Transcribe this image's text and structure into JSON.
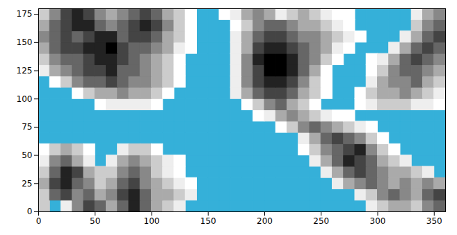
{
  "chart_data": {
    "type": "heatmap",
    "color": "#35b0d9",
    "xlim": [
      0,
      360
    ],
    "ylim": [
      0,
      180
    ],
    "xticks": [
      0,
      50,
      100,
      150,
      200,
      250,
      300,
      350
    ],
    "yticks": [
      0,
      25,
      50,
      75,
      100,
      125,
      150,
      175
    ],
    "x_edges": [
      0,
      10,
      20,
      30,
      40,
      50,
      60,
      70,
      80,
      90,
      100,
      110,
      120,
      130,
      140,
      150,
      160,
      170,
      180,
      190,
      200,
      210,
      220,
      230,
      240,
      250,
      260,
      270,
      280,
      290,
      300,
      310,
      320,
      330,
      340,
      350,
      360
    ],
    "y_edges": [
      0,
      10,
      20,
      30,
      40,
      50,
      60,
      70,
      80,
      90,
      100,
      110,
      120,
      130,
      140,
      150,
      160,
      170,
      180
    ],
    "cells": [
      [
        0.2,
        null,
        0.1,
        0.4,
        0.6,
        0.5,
        0.3,
        0.5,
        0.7,
        0.5,
        0.3,
        0.2,
        0.1,
        null,
        null,
        null,
        null,
        null,
        null,
        null,
        null,
        null,
        null,
        null,
        null,
        null,
        null,
        null,
        null,
        0.1,
        0.2,
        0.3,
        0.3,
        0.2,
        0.4,
        0.5
      ],
      [
        0.2,
        0.5,
        0.6,
        0.4,
        0.5,
        0.3,
        0.4,
        0.6,
        0.7,
        0.5,
        0.3,
        0.3,
        0.2,
        0.1,
        null,
        null,
        null,
        null,
        null,
        null,
        null,
        null,
        null,
        null,
        null,
        null,
        null,
        null,
        0.1,
        0.2,
        0.4,
        0.5,
        0.4,
        0.3,
        0.5,
        0.6
      ],
      [
        0.3,
        0.6,
        0.7,
        0.5,
        0.4,
        0.2,
        0.3,
        0.5,
        0.6,
        0.4,
        0.3,
        0.2,
        0.1,
        0.05,
        null,
        null,
        null,
        null,
        null,
        null,
        null,
        null,
        null,
        null,
        null,
        null,
        0.1,
        0.3,
        0.4,
        0.5,
        0.4,
        0.3,
        0.4,
        0.3,
        0.4,
        0.3
      ],
      [
        0.2,
        0.5,
        0.7,
        0.6,
        0.3,
        0.2,
        0.2,
        0.4,
        0.5,
        0.4,
        0.2,
        0.1,
        0.05,
        null,
        null,
        null,
        null,
        null,
        null,
        null,
        null,
        null,
        null,
        null,
        null,
        0.1,
        0.3,
        0.5,
        0.6,
        0.5,
        0.4,
        0.3,
        0.3,
        0.2,
        0.1,
        null
      ],
      [
        0.1,
        0.4,
        0.5,
        0.3,
        0.1,
        null,
        0.1,
        0.3,
        0.4,
        0.3,
        0.2,
        0.1,
        0.05,
        null,
        null,
        null,
        null,
        null,
        null,
        null,
        null,
        null,
        null,
        null,
        0.1,
        0.3,
        0.5,
        0.7,
        0.6,
        0.5,
        0.3,
        0.2,
        0.1,
        null,
        null,
        null
      ],
      [
        0.05,
        0.2,
        0.3,
        0.2,
        0.05,
        null,
        null,
        0.1,
        0.2,
        0.2,
        0.05,
        null,
        null,
        null,
        null,
        null,
        null,
        null,
        null,
        null,
        null,
        null,
        null,
        0.05,
        0.2,
        0.4,
        0.5,
        0.6,
        0.7,
        0.4,
        0.2,
        0.05,
        null,
        null,
        null,
        null
      ],
      [
        null,
        null,
        null,
        null,
        null,
        null,
        null,
        null,
        null,
        null,
        null,
        null,
        null,
        null,
        null,
        null,
        null,
        null,
        null,
        null,
        null,
        null,
        null,
        0.1,
        0.3,
        0.5,
        0.6,
        0.5,
        0.4,
        0.2,
        0.05,
        null,
        null,
        null,
        null,
        null
      ],
      [
        null,
        null,
        null,
        null,
        null,
        null,
        null,
        null,
        null,
        null,
        null,
        null,
        null,
        null,
        null,
        null,
        null,
        null,
        null,
        null,
        null,
        0.05,
        0.2,
        0.4,
        0.5,
        0.4,
        0.3,
        0.2,
        0.1,
        0.05,
        null,
        null,
        null,
        null,
        null,
        null
      ],
      [
        null,
        null,
        null,
        null,
        null,
        null,
        null,
        null,
        null,
        null,
        null,
        null,
        null,
        null,
        null,
        null,
        null,
        null,
        null,
        0.05,
        0.1,
        0.3,
        0.4,
        0.3,
        0.2,
        0.1,
        0.05,
        0.05,
        null,
        null,
        null,
        null,
        null,
        null,
        null,
        null
      ],
      [
        null,
        null,
        null,
        null,
        null,
        0.05,
        0.1,
        0.1,
        0.1,
        0.1,
        0.05,
        null,
        null,
        null,
        null,
        null,
        null,
        null,
        0.05,
        0.2,
        0.4,
        0.5,
        0.3,
        0.2,
        0.05,
        null,
        null,
        null,
        0.05,
        0.1,
        0.2,
        0.2,
        0.2,
        0.1,
        0.1,
        0.05
      ],
      [
        null,
        null,
        null,
        0.05,
        0.2,
        0.3,
        0.3,
        0.4,
        0.3,
        0.3,
        0.2,
        0.05,
        null,
        null,
        null,
        null,
        null,
        0.1,
        0.3,
        0.5,
        0.6,
        0.6,
        0.5,
        0.3,
        0.2,
        0.05,
        null,
        null,
        0.05,
        0.2,
        0.3,
        0.3,
        0.4,
        0.3,
        0.2,
        0.1
      ],
      [
        null,
        0.05,
        0.2,
        0.4,
        0.5,
        0.5,
        0.6,
        0.5,
        0.4,
        0.4,
        0.3,
        0.2,
        0.05,
        null,
        null,
        null,
        null,
        0.1,
        0.4,
        0.6,
        0.7,
        0.7,
        0.6,
        0.4,
        0.2,
        0.05,
        null,
        null,
        null,
        0.1,
        0.3,
        0.4,
        0.4,
        0.5,
        0.3,
        0.2
      ],
      [
        0.1,
        0.3,
        0.4,
        0.5,
        0.6,
        0.6,
        0.7,
        0.5,
        0.5,
        0.4,
        0.3,
        0.2,
        0.05,
        null,
        null,
        null,
        null,
        0.1,
        0.4,
        0.6,
        0.8,
        0.8,
        0.7,
        0.5,
        0.3,
        0.05,
        null,
        null,
        null,
        0.05,
        0.2,
        0.4,
        0.5,
        0.5,
        0.4,
        0.3
      ],
      [
        0.2,
        0.4,
        0.5,
        0.5,
        0.6,
        0.7,
        0.7,
        0.6,
        0.5,
        0.4,
        0.3,
        0.2,
        0.05,
        null,
        null,
        null,
        null,
        0.1,
        0.4,
        0.7,
        0.8,
        0.8,
        0.7,
        0.5,
        0.4,
        0.2,
        0.05,
        null,
        null,
        0.05,
        0.1,
        0.3,
        0.5,
        0.6,
        0.5,
        0.4
      ],
      [
        0.3,
        0.5,
        0.6,
        0.6,
        0.7,
        0.7,
        0.8,
        0.6,
        0.5,
        0.5,
        0.4,
        0.3,
        0.1,
        0.05,
        null,
        null,
        null,
        0.1,
        0.3,
        0.6,
        0.7,
        0.7,
        0.6,
        0.5,
        0.4,
        0.3,
        0.1,
        0.05,
        null,
        null,
        null,
        0.1,
        0.3,
        0.5,
        0.6,
        0.5
      ],
      [
        0.4,
        0.5,
        0.6,
        0.5,
        0.6,
        0.7,
        0.7,
        0.5,
        0.6,
        0.6,
        0.5,
        0.3,
        0.2,
        0.05,
        null,
        null,
        null,
        0.1,
        0.3,
        0.5,
        0.6,
        0.6,
        0.5,
        0.4,
        0.4,
        0.3,
        0.2,
        0.1,
        0.05,
        null,
        null,
        null,
        0.1,
        0.3,
        0.5,
        0.6
      ],
      [
        0.3,
        0.5,
        0.6,
        0.7,
        0.7,
        0.5,
        0.4,
        0.5,
        0.6,
        0.7,
        0.6,
        0.4,
        0.2,
        0.05,
        null,
        null,
        null,
        0.05,
        0.2,
        0.4,
        0.5,
        0.5,
        0.4,
        0.3,
        0.3,
        0.2,
        0.1,
        0.05,
        null,
        null,
        null,
        null,
        null,
        0.2,
        0.4,
        0.5
      ],
      [
        0.2,
        0.4,
        0.6,
        0.7,
        0.6,
        0.4,
        0.3,
        0.4,
        0.5,
        0.6,
        0.5,
        0.3,
        0.2,
        0.05,
        null,
        null,
        0.05,
        0.1,
        0.3,
        0.4,
        0.3,
        0.1,
        0.2,
        0.3,
        0.2,
        0.1,
        0.05,
        0.05,
        null,
        null,
        null,
        null,
        null,
        0.1,
        0.3,
        0.4
      ]
    ]
  }
}
